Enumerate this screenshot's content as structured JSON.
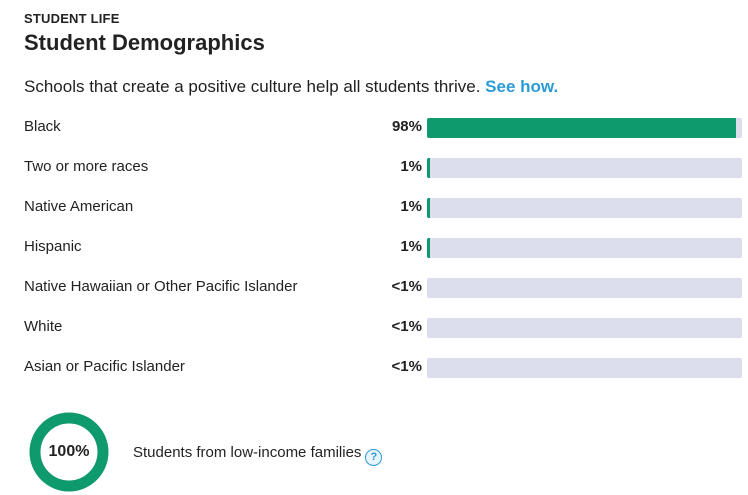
{
  "section": {
    "eyebrow": "STUDENT LIFE",
    "title": "Student Demographics"
  },
  "intro": {
    "text": "Schools that create a positive culture help all students thrive.",
    "link": "See how."
  },
  "demographics": [
    {
      "label": "Black",
      "value": "98%",
      "percent": 98
    },
    {
      "label": "Two or more races",
      "value": "1%",
      "percent": 1
    },
    {
      "label": "Native American",
      "value": "1%",
      "percent": 1
    },
    {
      "label": "Hispanic",
      "value": "1%",
      "percent": 1
    },
    {
      "label": "Native Hawaiian or Other Pacific Islander",
      "value": "<1%",
      "percent": 0
    },
    {
      "label": "White",
      "value": "<1%",
      "percent": 0
    },
    {
      "label": "Asian or Pacific Islander",
      "value": "<1%",
      "percent": 0
    }
  ],
  "low_income": {
    "value": "100%",
    "percent": 100,
    "label": "Students from low-income families",
    "help_icon": "question-mark-icon"
  },
  "colors": {
    "accent": "#0f9a6e",
    "track": "#dcdeed",
    "link": "#2b9bd6"
  }
}
